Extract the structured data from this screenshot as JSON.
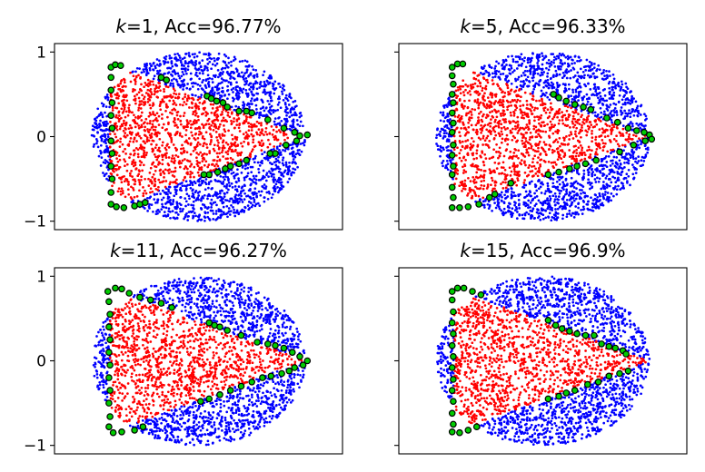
{
  "figure": {
    "rows": 2,
    "cols": 2,
    "sharey": true
  },
  "chart_data": [
    {
      "type": "scatter",
      "title_k": "k",
      "title_rest": "=1, Acc=96.77%",
      "xlim": [
        -1.35,
        1.35
      ],
      "ylim": [
        -1.1,
        1.1
      ],
      "xticks": [],
      "yticks": [
        1,
        0,
        -1
      ],
      "ytick_labels": [
        "1",
        "0",
        "−1"
      ],
      "show_ytick_labels": true,
      "grid": false,
      "series": [
        {
          "color": "#0000ff",
          "marker": "point"
        },
        {
          "color": "#ff0000",
          "marker": "point"
        },
        {
          "color": "#00cc00",
          "edgecolor": "#000000",
          "marker": "circle",
          "points": [
            [
              -0.82,
              0.82
            ],
            [
              -0.78,
              0.85
            ],
            [
              -0.73,
              0.84
            ],
            [
              -0.82,
              0.7
            ],
            [
              -0.82,
              0.55
            ],
            [
              -0.81,
              0.4
            ],
            [
              -0.82,
              0.25
            ],
            [
              -0.81,
              0.1
            ],
            [
              -0.82,
              -0.05
            ],
            [
              -0.81,
              -0.2
            ],
            [
              -0.82,
              -0.35
            ],
            [
              -0.81,
              -0.5
            ],
            [
              -0.82,
              -0.66
            ],
            [
              -0.82,
              -0.8
            ],
            [
              -0.77,
              -0.83
            ],
            [
              -0.7,
              -0.84
            ],
            [
              -0.6,
              -0.82
            ],
            [
              -0.55,
              -0.8
            ],
            [
              -0.5,
              -0.78
            ],
            [
              -0.35,
              0.7
            ],
            [
              -0.3,
              0.67
            ],
            [
              0.08,
              0.48
            ],
            [
              0.12,
              0.45
            ],
            [
              0.17,
              0.42
            ],
            [
              0.23,
              0.4
            ],
            [
              0.27,
              0.35
            ],
            [
              0.38,
              0.3
            ],
            [
              0.45,
              0.3
            ],
            [
              0.5,
              0.28
            ],
            [
              0.65,
              0.2
            ],
            [
              0.8,
              0.1
            ],
            [
              0.9,
              0.05
            ],
            [
              0.95,
              0.01
            ],
            [
              1.02,
              0.02
            ],
            [
              0.92,
              -0.05
            ],
            [
              0.82,
              -0.1
            ],
            [
              0.72,
              -0.2
            ],
            [
              0.67,
              -0.2
            ],
            [
              0.45,
              -0.28
            ],
            [
              0.38,
              -0.32
            ],
            [
              0.3,
              -0.35
            ],
            [
              0.25,
              -0.38
            ],
            [
              0.18,
              -0.42
            ],
            [
              0.1,
              -0.45
            ],
            [
              0.05,
              -0.45
            ]
          ]
        }
      ]
    },
    {
      "type": "scatter",
      "title_k": "k",
      "title_rest": "=5, Acc=96.33%",
      "xlim": [
        -1.35,
        1.35
      ],
      "ylim": [
        -1.1,
        1.1
      ],
      "xticks": [],
      "yticks": [
        1,
        0,
        -1
      ],
      "ytick_labels": [
        "1",
        "0",
        "−1"
      ],
      "show_ytick_labels": false,
      "grid": false,
      "series": [
        {
          "color": "#0000ff",
          "marker": "point"
        },
        {
          "color": "#ff0000",
          "marker": "point"
        },
        {
          "color": "#00cc00",
          "edgecolor": "#000000",
          "marker": "circle",
          "points": [
            [
              -0.85,
              0.82
            ],
            [
              -0.8,
              0.86
            ],
            [
              -0.75,
              0.86
            ],
            [
              -0.85,
              0.72
            ],
            [
              -0.84,
              0.62
            ],
            [
              -0.85,
              0.5
            ],
            [
              -0.84,
              0.4
            ],
            [
              -0.85,
              0.28
            ],
            [
              -0.84,
              0.16
            ],
            [
              -0.85,
              0.05
            ],
            [
              -0.84,
              -0.1
            ],
            [
              -0.85,
              -0.22
            ],
            [
              -0.84,
              -0.35
            ],
            [
              -0.85,
              -0.45
            ],
            [
              -0.85,
              -0.6
            ],
            [
              -0.84,
              -0.72
            ],
            [
              -0.85,
              -0.84
            ],
            [
              -0.78,
              -0.84
            ],
            [
              -0.7,
              -0.83
            ],
            [
              -0.6,
              -0.8
            ],
            [
              -0.5,
              -0.72
            ],
            [
              -0.45,
              -0.68
            ],
            [
              -0.3,
              -0.55
            ],
            [
              0.1,
              0.5
            ],
            [
              0.15,
              0.46
            ],
            [
              0.22,
              0.42
            ],
            [
              0.3,
              0.38
            ],
            [
              0.38,
              0.35
            ],
            [
              0.45,
              0.32
            ],
            [
              0.6,
              0.22
            ],
            [
              0.7,
              0.17
            ],
            [
              0.8,
              0.1
            ],
            [
              0.88,
              0.07
            ],
            [
              0.95,
              0.05
            ],
            [
              1.0,
              0.02
            ],
            [
              1.02,
              -0.03
            ],
            [
              0.96,
              -0.05
            ],
            [
              0.85,
              -0.1
            ],
            [
              0.72,
              -0.18
            ],
            [
              0.5,
              -0.28
            ],
            [
              0.4,
              -0.32
            ],
            [
              0.32,
              -0.35
            ],
            [
              0.25,
              -0.38
            ],
            [
              0.15,
              -0.42
            ],
            [
              0.05,
              -0.45
            ]
          ]
        }
      ]
    },
    {
      "type": "scatter",
      "title_k": "k",
      "title_rest": "=11, Acc=96.27%",
      "xlim": [
        -1.35,
        1.35
      ],
      "ylim": [
        -1.1,
        1.1
      ],
      "xticks": [],
      "yticks": [
        1,
        0,
        -1
      ],
      "ytick_labels": [
        "1",
        "0",
        "−1"
      ],
      "show_ytick_labels": true,
      "grid": false,
      "series": [
        {
          "color": "#0000ff",
          "marker": "point"
        },
        {
          "color": "#ff0000",
          "marker": "point"
        },
        {
          "color": "#00cc00",
          "edgecolor": "#000000",
          "marker": "circle",
          "points": [
            [
              -0.85,
              0.82
            ],
            [
              -0.78,
              0.86
            ],
            [
              -0.72,
              0.85
            ],
            [
              -0.65,
              0.8
            ],
            [
              -0.55,
              0.75
            ],
            [
              -0.45,
              0.72
            ],
            [
              -0.35,
              0.68
            ],
            [
              -0.25,
              0.63
            ],
            [
              -0.84,
              0.7
            ],
            [
              -0.83,
              0.55
            ],
            [
              -0.84,
              0.4
            ],
            [
              -0.83,
              0.25
            ],
            [
              -0.84,
              0.1
            ],
            [
              -0.83,
              -0.05
            ],
            [
              -0.84,
              -0.2
            ],
            [
              -0.83,
              -0.35
            ],
            [
              -0.84,
              -0.5
            ],
            [
              -0.83,
              -0.66
            ],
            [
              -0.84,
              -0.78
            ],
            [
              -0.8,
              -0.85
            ],
            [
              -0.72,
              -0.84
            ],
            [
              -0.6,
              -0.82
            ],
            [
              -0.52,
              -0.78
            ],
            [
              0.1,
              0.45
            ],
            [
              0.15,
              0.42
            ],
            [
              0.2,
              0.4
            ],
            [
              0.27,
              0.36
            ],
            [
              0.4,
              0.3
            ],
            [
              0.55,
              0.22
            ],
            [
              0.65,
              0.2
            ],
            [
              0.72,
              0.18
            ],
            [
              0.8,
              0.15
            ],
            [
              0.88,
              0.1
            ],
            [
              0.95,
              0.05
            ],
            [
              1.02,
              0.0
            ],
            [
              0.98,
              -0.05
            ],
            [
              0.9,
              -0.08
            ],
            [
              0.85,
              -0.12
            ],
            [
              0.78,
              -0.15
            ],
            [
              0.68,
              -0.18
            ],
            [
              0.6,
              -0.2
            ],
            [
              0.5,
              -0.25
            ],
            [
              0.4,
              -0.3
            ],
            [
              0.3,
              -0.35
            ],
            [
              0.2,
              -0.4
            ],
            [
              0.1,
              -0.45
            ],
            [
              0.02,
              -0.48
            ]
          ]
        }
      ]
    },
    {
      "type": "scatter",
      "title_k": "k",
      "title_rest": "=15, Acc=96.9%",
      "xlim": [
        -1.35,
        1.35
      ],
      "ylim": [
        -1.1,
        1.1
      ],
      "xticks": [],
      "yticks": [
        1,
        0,
        -1
      ],
      "ytick_labels": [
        "1",
        "0",
        "−1"
      ],
      "show_ytick_labels": false,
      "grid": false,
      "series": [
        {
          "color": "#0000ff",
          "marker": "point"
        },
        {
          "color": "#ff0000",
          "marker": "point"
        },
        {
          "color": "#00cc00",
          "edgecolor": "#000000",
          "marker": "circle",
          "points": [
            [
              -0.85,
              0.82
            ],
            [
              -0.8,
              0.86
            ],
            [
              -0.74,
              0.86
            ],
            [
              -0.66,
              0.82
            ],
            [
              -0.58,
              0.78
            ],
            [
              -0.85,
              0.72
            ],
            [
              -0.84,
              0.58
            ],
            [
              -0.85,
              0.45
            ],
            [
              -0.84,
              0.32
            ],
            [
              -0.85,
              0.18
            ],
            [
              -0.84,
              0.05
            ],
            [
              -0.85,
              -0.08
            ],
            [
              -0.84,
              -0.22
            ],
            [
              -0.85,
              -0.35
            ],
            [
              -0.84,
              -0.48
            ],
            [
              -0.85,
              -0.62
            ],
            [
              -0.84,
              -0.75
            ],
            [
              -0.85,
              -0.84
            ],
            [
              -0.78,
              -0.85
            ],
            [
              -0.7,
              -0.82
            ],
            [
              -0.62,
              -0.78
            ],
            [
              0.05,
              0.48
            ],
            [
              0.12,
              0.42
            ],
            [
              0.18,
              0.38
            ],
            [
              0.25,
              0.35
            ],
            [
              0.32,
              0.32
            ],
            [
              0.4,
              0.3
            ],
            [
              0.48,
              0.3
            ],
            [
              0.55,
              0.2
            ],
            [
              0.62,
              0.17
            ],
            [
              0.68,
              0.15
            ],
            [
              0.75,
              0.12
            ],
            [
              0.78,
              0.08
            ],
            [
              0.8,
              -0.12
            ],
            [
              0.72,
              -0.15
            ],
            [
              0.62,
              -0.18
            ],
            [
              0.52,
              -0.25
            ],
            [
              0.42,
              -0.28
            ],
            [
              0.3,
              -0.35
            ],
            [
              0.22,
              -0.38
            ],
            [
              0.15,
              -0.42
            ],
            [
              0.05,
              -0.45
            ]
          ]
        }
      ]
    }
  ]
}
